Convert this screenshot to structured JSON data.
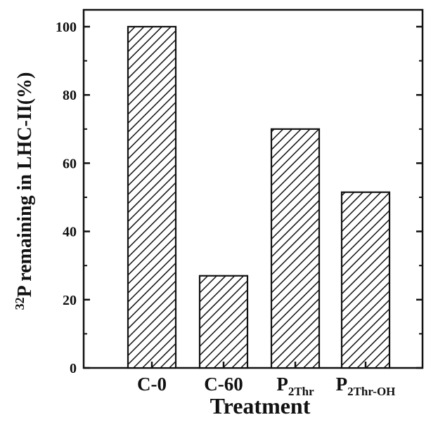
{
  "chart_data": {
    "type": "bar",
    "categories": [
      {
        "main": "C-0",
        "sub": ""
      },
      {
        "main": "C-60",
        "sub": ""
      },
      {
        "main": "P",
        "sub": "2Thr"
      },
      {
        "main": "P",
        "sub": "2Thr-OH"
      }
    ],
    "values": [
      100,
      27,
      70,
      51.5
    ],
    "xlabel": "Treatment",
    "ylabel": {
      "sup": "32",
      "main": "P remaining in LHC-II(%)"
    },
    "ylim": [
      0,
      100
    ],
    "yticks": [
      "0",
      "20",
      "40",
      "60",
      "80",
      "100"
    ],
    "bar_fill": "diagonal-hatch",
    "grid": false,
    "colors": {
      "axis": "#111111",
      "bar_stroke": "#111111",
      "hatch": "#111111",
      "background": "#ffffff"
    }
  }
}
